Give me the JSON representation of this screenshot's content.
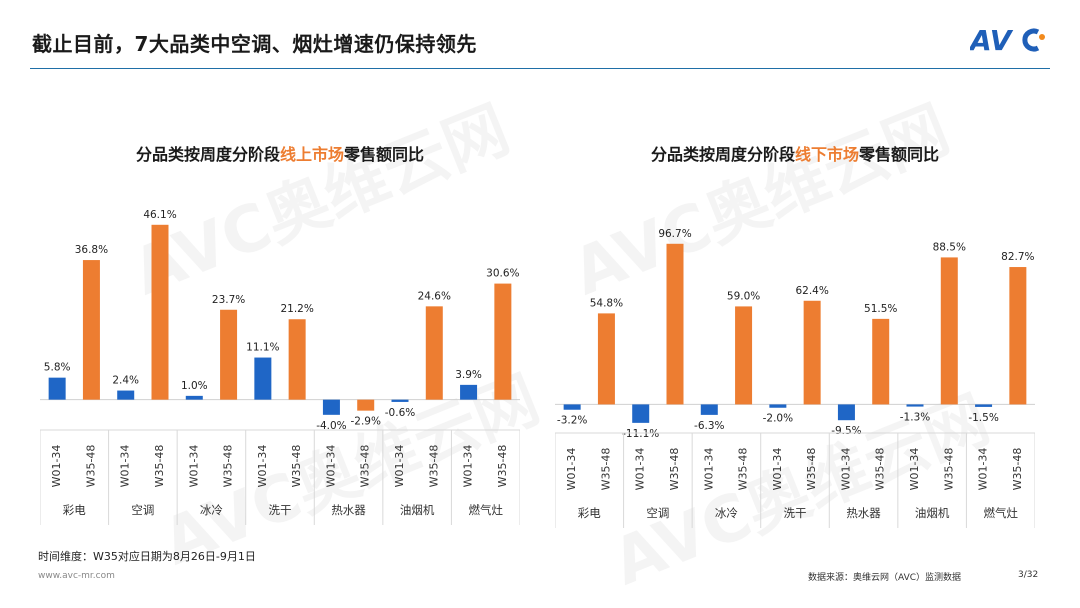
{
  "header": {
    "title": "截止目前，7大品类中空调、烟灶增速仍保持领先",
    "logo_text": "AVC"
  },
  "colors": {
    "online_accent": "#ed7d31",
    "offline_accent": "#ed7d31",
    "bar_early": "#1f66c6",
    "bar_late": "#ed7d31"
  },
  "chart_data": [
    {
      "type": "bar",
      "title_parts": [
        "分品类按周度分阶段",
        "线上市场",
        "零售额同比"
      ],
      "categories": [
        "彩电",
        "空调",
        "冰冷",
        "洗干",
        "热水器",
        "油烟机",
        "燃气灶"
      ],
      "periods": [
        "W01-34",
        "W35-48"
      ],
      "series": [
        {
          "values": [
            5.8,
            2.4,
            1.0,
            11.1,
            -4.0,
            -0.6,
            3.9
          ]
        },
        {
          "values": [
            36.8,
            46.1,
            23.7,
            21.2,
            -2.9,
            24.6,
            30.6
          ]
        }
      ],
      "labels": [
        [
          "5.8%",
          "2.4%",
          "1.0%",
          "11.1%",
          "-4.0%",
          "-0.6%",
          "3.9%"
        ],
        [
          "36.8%",
          "46.1%",
          "23.7%",
          "21.2%",
          "-2.9%",
          "24.6%",
          "30.6%"
        ]
      ],
      "ylim": [
        -8,
        50
      ]
    },
    {
      "type": "bar",
      "title_parts": [
        "分品类按周度分阶段",
        "线下市场",
        "零售额同比"
      ],
      "categories": [
        "彩电",
        "空调",
        "冰冷",
        "洗干",
        "热水器",
        "油烟机",
        "燃气灶"
      ],
      "periods": [
        "W01-34",
        "W35-48"
      ],
      "series": [
        {
          "values": [
            -3.2,
            -11.1,
            -6.3,
            -2.0,
            -9.5,
            -1.3,
            -1.5
          ]
        },
        {
          "values": [
            54.8,
            96.7,
            59.0,
            62.4,
            51.5,
            88.5,
            82.7
          ]
        }
      ],
      "labels": [
        [
          "-3.2%",
          "-11.1%",
          "-6.3%",
          "-2.0%",
          "-9.5%",
          "-1.3%",
          "-1.5%"
        ],
        [
          "54.8%",
          "96.7%",
          "59.0%",
          "62.4%",
          "51.5%",
          "88.5%",
          "82.7%"
        ]
      ],
      "ylim": [
        -16,
        105
      ]
    }
  ],
  "footer": {
    "note": "时间维度：W35对应日期为8月26日-9月1日",
    "url": "www.avc-mr.com",
    "source": "数据来源：奥维云网（AVC）监测数据",
    "page": "3/32"
  },
  "watermark_text": "AVC奥维云网"
}
